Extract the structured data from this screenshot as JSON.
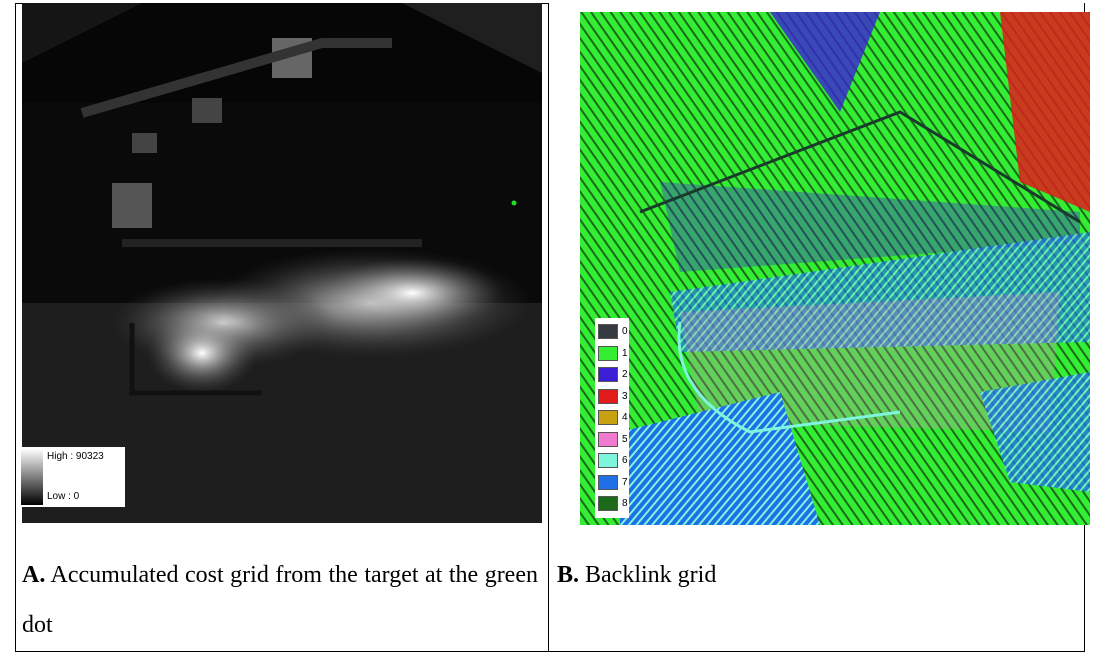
{
  "panel_a": {
    "legend": {
      "high": "High : 90323",
      "low": "Low : 0"
    },
    "caption": {
      "label": "A.",
      "text": "Accumulated cost grid from the target at the green dot"
    }
  },
  "panel_b": {
    "legend": [
      {
        "label": "0",
        "color": "#353b40"
      },
      {
        "label": "1",
        "color": "#33ee33"
      },
      {
        "label": "2",
        "color": "#3b1fd6"
      },
      {
        "label": "3",
        "color": "#e21b1b"
      },
      {
        "label": "4",
        "color": "#c8a010"
      },
      {
        "label": "5",
        "color": "#f07ad0"
      },
      {
        "label": "6",
        "color": "#7ff5dd"
      },
      {
        "label": "7",
        "color": "#1f6fe6"
      },
      {
        "label": "8",
        "color": "#1a6a1a"
      }
    ],
    "caption": {
      "label": "B.",
      "text": "Backlink grid"
    }
  }
}
